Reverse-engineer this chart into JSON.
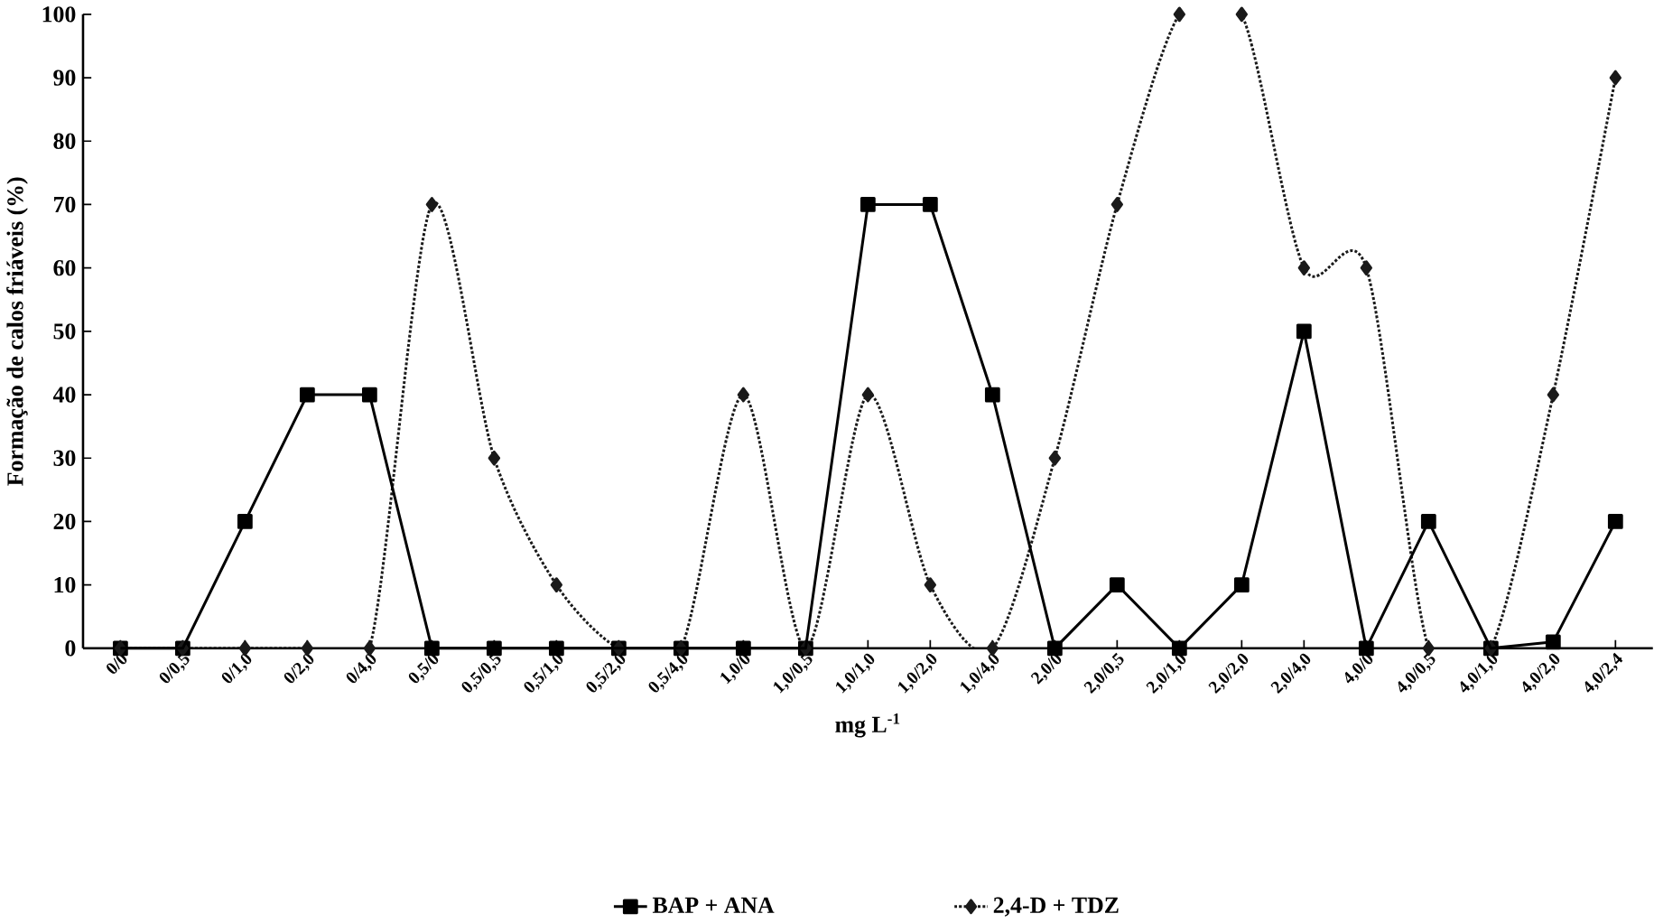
{
  "chart_data": {
    "type": "line",
    "xlabel": "mg L$^{-1}$",
    "ylabel": "Formação de calos friáveis (%)",
    "categories": [
      "0/0",
      "0/0,5",
      "0/1,0",
      "0/2,0",
      "0/4,0",
      "0,5/0",
      "0,5/0,5",
      "0,5/1,0",
      "0,5/2,0",
      "0,5/4,0",
      "1,0/0",
      "1,0/0,5",
      "1,0/1,0",
      "1,0/2,0",
      "1,0/4,0",
      "2,0/0",
      "2,0/0,5",
      "2,0/1,0",
      "2,0/2,0",
      "2,0/4,0",
      "4,0/0",
      "4,0/0,5",
      "4,0/1,0",
      "4,0/2,0",
      "4,0/2,4"
    ],
    "series": [
      {
        "name": "BAP + ANA",
        "color": "#000000",
        "marker": "square",
        "line_style": "solid",
        "values": [
          0,
          0,
          20,
          40,
          40,
          0,
          0,
          0,
          0,
          0,
          0,
          0,
          70,
          70,
          40,
          0,
          10,
          0,
          10,
          50,
          0,
          20,
          0,
          1,
          20
        ]
      },
      {
        "name": "2,4-D + TDZ",
        "color": "#1a1a1a",
        "marker": "diamond",
        "line_style": "dotted",
        "values": [
          0,
          0,
          0,
          0,
          0,
          70,
          30,
          10,
          0,
          0,
          40,
          0,
          40,
          10,
          0,
          30,
          70,
          100,
          100,
          60,
          60,
          0,
          0,
          40,
          90
        ]
      }
    ],
    "ylim": [
      0,
      100
    ],
    "yticks": [
      0,
      10,
      20,
      30,
      40,
      50,
      60,
      70,
      80,
      90,
      100
    ],
    "grid": false,
    "legend": "bottom"
  }
}
